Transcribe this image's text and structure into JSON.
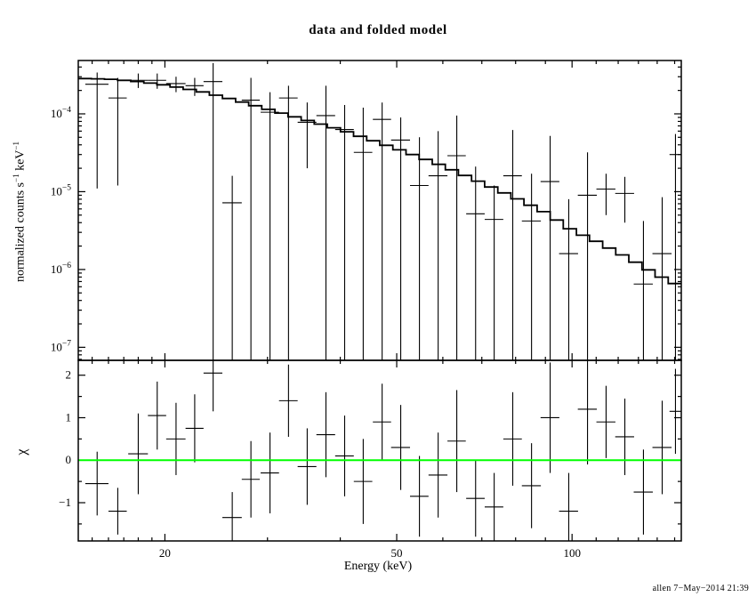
{
  "title": "data and folded model",
  "xlabel": "Energy (keV)",
  "top_ylabel": {
    "pre": "normalized counts s",
    "sup1": "−1",
    "mid": " keV",
    "sup2": "−1"
  },
  "bottom_ylabel": "χ",
  "signature": "allen  7−May−2014 21:39",
  "colors": {
    "background": "#ffffff",
    "axes": "#000000",
    "data": "#000000",
    "model_line": "#000000",
    "zero_line": "#00ff00"
  },
  "chart_data": [
    {
      "type": "scatter",
      "panel": "spectrum",
      "title": "data and folded model",
      "ylabel": "normalized counts s^-1 keV^-1",
      "xscale": "log",
      "yscale": "log",
      "xlim": [
        14.2,
        154
      ],
      "ylim": [
        6.8e-08,
        0.000485
      ],
      "xticks": [
        20,
        50,
        100
      ],
      "xticks_minor": [
        15,
        16,
        17,
        18,
        19,
        30,
        40,
        60,
        70,
        80,
        90,
        110,
        120,
        130,
        140,
        150
      ],
      "ytick_exponents": [
        -4,
        -5,
        -6,
        -7
      ],
      "grid": false,
      "model_step_curve": {
        "energies": [
          14.2,
          16,
          18,
          20,
          23,
          26,
          30,
          35,
          40,
          46,
          52,
          60,
          70,
          80,
          90,
          100,
          110,
          125,
          140,
          154
        ],
        "values": [
          0.000285,
          0.00028,
          0.00026,
          0.000235,
          0.000195,
          0.000155,
          0.000115,
          8.3e-05,
          6.3e-05,
          4.4e-05,
          3.2e-05,
          2.15e-05,
          1.3e-05,
          8.3e-06,
          5.4e-06,
          3.2e-06,
          2.3e-06,
          1.4e-06,
          8.5e-07,
          6e-07
        ],
        "n_bins": 46
      },
      "points": [
        {
          "e": 15.3,
          "de": 0.7,
          "y": 0.00024,
          "ylo": 1.1e-05,
          "yhi": 0.00034
        },
        {
          "e": 16.6,
          "de": 0.6,
          "y": 0.00016,
          "ylo": 1.2e-05,
          "yhi": 0.00029
        },
        {
          "e": 18.0,
          "de": 0.7,
          "y": 0.00027,
          "ylo": 0.000215,
          "yhi": 0.00033
        },
        {
          "e": 19.4,
          "de": 0.7,
          "y": 0.00027,
          "ylo": 0.00021,
          "yhi": 0.00033
        },
        {
          "e": 20.9,
          "de": 0.8,
          "y": 0.000245,
          "ylo": 0.00019,
          "yhi": 0.0003
        },
        {
          "e": 22.5,
          "de": 0.8,
          "y": 0.00023,
          "ylo": 0.00017,
          "yhi": 0.00029
        },
        {
          "e": 24.2,
          "de": 0.9,
          "y": 0.00026,
          "ylo": 1e-09,
          "yhi": 0.00045
        },
        {
          "e": 26.1,
          "de": 1.0,
          "y": 7.2e-06,
          "ylo": 1e-09,
          "yhi": 1.6e-05
        },
        {
          "e": 28.1,
          "de": 1.0,
          "y": 0.00015,
          "ylo": 1e-09,
          "yhi": 0.00029
        },
        {
          "e": 30.3,
          "de": 1.1,
          "y": 0.000105,
          "ylo": 1e-09,
          "yhi": 0.00019
        },
        {
          "e": 32.6,
          "de": 1.2,
          "y": 0.00016,
          "ylo": 1e-09,
          "yhi": 0.00023
        },
        {
          "e": 35.1,
          "de": 1.3,
          "y": 7.8e-05,
          "ylo": 2e-05,
          "yhi": 0.00014
        },
        {
          "e": 37.8,
          "de": 1.4,
          "y": 9.5e-05,
          "ylo": 1e-09,
          "yhi": 0.00023
        },
        {
          "e": 40.7,
          "de": 1.5,
          "y": 6.3e-05,
          "ylo": 1e-09,
          "yhi": 0.00013
        },
        {
          "e": 43.8,
          "de": 1.6,
          "y": 3.2e-05,
          "ylo": 1e-09,
          "yhi": 0.00012
        },
        {
          "e": 47.2,
          "de": 1.7,
          "y": 8.5e-05,
          "ylo": 1e-09,
          "yhi": 0.00014
        },
        {
          "e": 50.8,
          "de": 1.9,
          "y": 4.6e-05,
          "ylo": 1e-09,
          "yhi": 9e-05
        },
        {
          "e": 54.7,
          "de": 2.0,
          "y": 1.2e-05,
          "ylo": 1e-09,
          "yhi": 5e-05
        },
        {
          "e": 58.9,
          "de": 2.2,
          "y": 1.6e-05,
          "ylo": 1e-09,
          "yhi": 6e-05
        },
        {
          "e": 63.4,
          "de": 2.3,
          "y": 2.9e-05,
          "ylo": 1e-09,
          "yhi": 9.5e-05
        },
        {
          "e": 68.3,
          "de": 2.5,
          "y": 5.2e-06,
          "ylo": 1e-09,
          "yhi": 2.1e-05
        },
        {
          "e": 73.5,
          "de": 2.7,
          "y": 4.4e-06,
          "ylo": 1e-09,
          "yhi": 1.2e-05
        },
        {
          "e": 79.1,
          "de": 2.9,
          "y": 1.6e-05,
          "ylo": 1e-09,
          "yhi": 6.2e-05
        },
        {
          "e": 85.2,
          "de": 3.2,
          "y": 4.2e-06,
          "ylo": 1e-09,
          "yhi": 1.7e-05
        },
        {
          "e": 91.7,
          "de": 3.4,
          "y": 1.35e-05,
          "ylo": 1e-09,
          "yhi": 5.2e-05
        },
        {
          "e": 98.7,
          "de": 3.7,
          "y": 1.6e-06,
          "ylo": 1e-09,
          "yhi": 8e-06
        },
        {
          "e": 106.3,
          "de": 4.0,
          "y": 9e-06,
          "ylo": 1e-09,
          "yhi": 3.2e-05
        },
        {
          "e": 114.4,
          "de": 4.3,
          "y": 1.08e-05,
          "ylo": 5e-06,
          "yhi": 1.7e-05
        },
        {
          "e": 123.2,
          "de": 4.6,
          "y": 9.5e-06,
          "ylo": 4e-06,
          "yhi": 1.55e-05
        },
        {
          "e": 132.6,
          "de": 5.0,
          "y": 6.5e-07,
          "ylo": 1e-09,
          "yhi": 4.2e-06
        },
        {
          "e": 142.8,
          "de": 5.4,
          "y": 1.6e-06,
          "ylo": 1e-09,
          "yhi": 8.5e-06
        },
        {
          "e": 150.5,
          "de": 3.5,
          "y": 3e-05,
          "ylo": 1e-09,
          "yhi": 5.5e-05
        }
      ]
    },
    {
      "type": "scatter",
      "panel": "residuals",
      "ylabel": "χ",
      "xlabel": "Energy (keV)",
      "xscale": "log",
      "yscale": "linear",
      "xlim": [
        14.2,
        154
      ],
      "ylim": [
        -1.9,
        2.35
      ],
      "xticks": [
        20,
        50,
        100
      ],
      "xticks_minor": [
        15,
        16,
        17,
        18,
        19,
        30,
        40,
        60,
        70,
        80,
        90,
        110,
        120,
        130,
        140,
        150
      ],
      "yticks": [
        -1,
        0,
        1,
        2
      ],
      "yticks_minor": [
        -1.5,
        -0.5,
        0.5,
        1.5
      ],
      "zero_line": 0,
      "zero_line_color": "#00ff00",
      "points": [
        {
          "e": 15.3,
          "de": 0.7,
          "chi": -0.55,
          "dchi": 0.75
        },
        {
          "e": 16.6,
          "de": 0.6,
          "chi": -1.2,
          "dchi": 0.55
        },
        {
          "e": 18.0,
          "de": 0.7,
          "chi": 0.15,
          "dchi": 0.95
        },
        {
          "e": 19.4,
          "de": 0.7,
          "chi": 1.05,
          "dchi": 0.8
        },
        {
          "e": 20.9,
          "de": 0.8,
          "chi": 0.5,
          "dchi": 0.85
        },
        {
          "e": 22.5,
          "de": 0.8,
          "chi": 0.75,
          "dchi": 0.8
        },
        {
          "e": 24.2,
          "de": 0.9,
          "chi": 2.05,
          "dchi": 0.9
        },
        {
          "e": 26.1,
          "de": 1.0,
          "chi": -1.35,
          "dchi": 0.6
        },
        {
          "e": 28.1,
          "de": 1.0,
          "chi": -0.45,
          "dchi": 0.9
        },
        {
          "e": 30.3,
          "de": 1.1,
          "chi": -0.3,
          "dchi": 0.95
        },
        {
          "e": 32.6,
          "de": 1.2,
          "chi": 1.4,
          "dchi": 0.85
        },
        {
          "e": 35.1,
          "de": 1.3,
          "chi": -0.15,
          "dchi": 0.9
        },
        {
          "e": 37.8,
          "de": 1.4,
          "chi": 0.6,
          "dchi": 1.0
        },
        {
          "e": 40.7,
          "de": 1.5,
          "chi": 0.1,
          "dchi": 0.95
        },
        {
          "e": 43.8,
          "de": 1.6,
          "chi": -0.5,
          "dchi": 1.0
        },
        {
          "e": 47.2,
          "de": 1.7,
          "chi": 0.9,
          "dchi": 0.9
        },
        {
          "e": 50.8,
          "de": 1.9,
          "chi": 0.3,
          "dchi": 1.0
        },
        {
          "e": 54.7,
          "de": 2.0,
          "chi": -0.85,
          "dchi": 0.95
        },
        {
          "e": 58.9,
          "de": 2.2,
          "chi": -0.35,
          "dchi": 1.0
        },
        {
          "e": 63.4,
          "de": 2.3,
          "chi": 0.45,
          "dchi": 1.2
        },
        {
          "e": 68.3,
          "de": 2.5,
          "chi": -0.9,
          "dchi": 0.9
        },
        {
          "e": 73.5,
          "de": 2.7,
          "chi": -1.1,
          "dchi": 0.8
        },
        {
          "e": 79.1,
          "de": 2.9,
          "chi": 0.5,
          "dchi": 1.1
        },
        {
          "e": 85.2,
          "de": 3.2,
          "chi": -0.6,
          "dchi": 1.0
        },
        {
          "e": 91.7,
          "de": 3.4,
          "chi": 1.0,
          "dchi": 1.3
        },
        {
          "e": 98.7,
          "de": 3.7,
          "chi": -1.2,
          "dchi": 0.9
        },
        {
          "e": 106.3,
          "de": 4.0,
          "chi": 1.2,
          "dchi": 1.3
        },
        {
          "e": 114.4,
          "de": 4.3,
          "chi": 0.9,
          "dchi": 0.85
        },
        {
          "e": 123.2,
          "de": 4.6,
          "chi": 0.55,
          "dchi": 0.9
        },
        {
          "e": 132.6,
          "de": 5.0,
          "chi": -0.75,
          "dchi": 1.0
        },
        {
          "e": 142.8,
          "de": 5.4,
          "chi": 0.3,
          "dchi": 1.1
        },
        {
          "e": 150.5,
          "de": 3.5,
          "chi": 1.15,
          "dchi": 1.0
        }
      ]
    }
  ]
}
